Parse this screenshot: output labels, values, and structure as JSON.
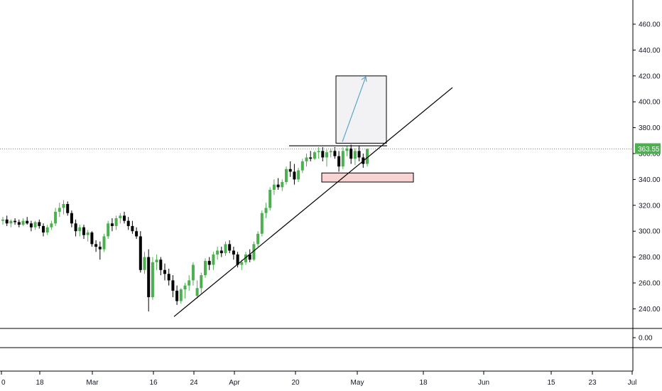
{
  "colors": {
    "up": "#4caf50",
    "down": "#000000",
    "last_price_line": "#4caf50",
    "trendline": "#000000",
    "projection_arrow": "#5aa5c8",
    "target_box_fill": "#f2f2f4",
    "target_box_stroke": "#000000",
    "stop_box_fill": "#f8d3d3",
    "stop_box_stroke": "#000000",
    "axis_text": "#131722",
    "gridline": "#000000"
  },
  "axis": {
    "price_ticks": [
      "460.00",
      "440.00",
      "420.00",
      "400.00",
      "380.00",
      "360.00",
      "340.00",
      "320.00",
      "300.00",
      "280.00",
      "260.00",
      "240.00"
    ],
    "indicator_tick": "0.00",
    "date_ticks": [
      "0",
      "18",
      "Mar",
      "16",
      "24",
      "Apr",
      "20",
      "May",
      "18",
      "Jun",
      "15",
      "23",
      "Jul"
    ],
    "last_price_label": "363.55"
  },
  "chart_data": {
    "type": "candlestick",
    "price_axis_ticks": [
      460,
      440,
      420,
      400,
      380,
      360,
      340,
      320,
      300,
      280,
      260,
      240
    ],
    "last_price": 363.55,
    "candles": [
      {
        "o": 308,
        "h": 311,
        "l": 305,
        "c": 309
      },
      {
        "o": 309,
        "h": 312,
        "l": 304,
        "c": 306
      },
      {
        "o": 306,
        "h": 309,
        "l": 303,
        "c": 308
      },
      {
        "o": 308,
        "h": 310,
        "l": 305,
        "c": 307
      },
      {
        "o": 307,
        "h": 309,
        "l": 303,
        "c": 305
      },
      {
        "o": 305,
        "h": 310,
        "l": 304,
        "c": 308
      },
      {
        "o": 308,
        "h": 311,
        "l": 305,
        "c": 306
      },
      {
        "o": 306,
        "h": 308,
        "l": 300,
        "c": 303
      },
      {
        "o": 303,
        "h": 308,
        "l": 301,
        "c": 307
      },
      {
        "o": 307,
        "h": 309,
        "l": 302,
        "c": 304
      },
      {
        "o": 304,
        "h": 306,
        "l": 296,
        "c": 299
      },
      {
        "o": 299,
        "h": 305,
        "l": 297,
        "c": 303
      },
      {
        "o": 303,
        "h": 308,
        "l": 301,
        "c": 306
      },
      {
        "o": 306,
        "h": 318,
        "l": 304,
        "c": 315
      },
      {
        "o": 315,
        "h": 322,
        "l": 311,
        "c": 318
      },
      {
        "o": 318,
        "h": 324,
        "l": 313,
        "c": 321
      },
      {
        "o": 321,
        "h": 323,
        "l": 312,
        "c": 314
      },
      {
        "o": 314,
        "h": 316,
        "l": 303,
        "c": 306
      },
      {
        "o": 306,
        "h": 309,
        "l": 296,
        "c": 300
      },
      {
        "o": 300,
        "h": 305,
        "l": 296,
        "c": 303
      },
      {
        "o": 303,
        "h": 305,
        "l": 294,
        "c": 297
      },
      {
        "o": 297,
        "h": 301,
        "l": 292,
        "c": 299
      },
      {
        "o": 299,
        "h": 300,
        "l": 288,
        "c": 290
      },
      {
        "o": 290,
        "h": 293,
        "l": 284,
        "c": 288
      },
      {
        "o": 288,
        "h": 292,
        "l": 278,
        "c": 286
      },
      {
        "o": 286,
        "h": 298,
        "l": 284,
        "c": 296
      },
      {
        "o": 296,
        "h": 308,
        "l": 294,
        "c": 306
      },
      {
        "o": 306,
        "h": 310,
        "l": 300,
        "c": 304
      },
      {
        "o": 304,
        "h": 312,
        "l": 301,
        "c": 310
      },
      {
        "o": 310,
        "h": 314,
        "l": 306,
        "c": 312
      },
      {
        "o": 312,
        "h": 315,
        "l": 306,
        "c": 308
      },
      {
        "o": 308,
        "h": 311,
        "l": 301,
        "c": 304
      },
      {
        "o": 304,
        "h": 308,
        "l": 298,
        "c": 300
      },
      {
        "o": 300,
        "h": 303,
        "l": 294,
        "c": 296
      },
      {
        "o": 296,
        "h": 300,
        "l": 268,
        "c": 270
      },
      {
        "o": 270,
        "h": 284,
        "l": 267,
        "c": 280
      },
      {
        "o": 280,
        "h": 286,
        "l": 238,
        "c": 249
      },
      {
        "o": 249,
        "h": 280,
        "l": 247,
        "c": 276
      },
      {
        "o": 276,
        "h": 282,
        "l": 270,
        "c": 278
      },
      {
        "o": 278,
        "h": 280,
        "l": 266,
        "c": 270
      },
      {
        "o": 270,
        "h": 275,
        "l": 262,
        "c": 267
      },
      {
        "o": 267,
        "h": 271,
        "l": 258,
        "c": 262
      },
      {
        "o": 262,
        "h": 266,
        "l": 249,
        "c": 254
      },
      {
        "o": 254,
        "h": 258,
        "l": 243,
        "c": 246
      },
      {
        "o": 246,
        "h": 256,
        "l": 244,
        "c": 255
      },
      {
        "o": 255,
        "h": 260,
        "l": 248,
        "c": 258
      },
      {
        "o": 258,
        "h": 266,
        "l": 254,
        "c": 262
      },
      {
        "o": 262,
        "h": 276,
        "l": 258,
        "c": 274
      },
      {
        "o": 250,
        "h": 262,
        "l": 248,
        "c": 256
      },
      {
        "o": 256,
        "h": 268,
        "l": 252,
        "c": 266
      },
      {
        "o": 266,
        "h": 279,
        "l": 264,
        "c": 277
      },
      {
        "o": 277,
        "h": 280,
        "l": 270,
        "c": 274
      },
      {
        "o": 274,
        "h": 284,
        "l": 270,
        "c": 282
      },
      {
        "o": 282,
        "h": 288,
        "l": 278,
        "c": 285
      },
      {
        "o": 285,
        "h": 288,
        "l": 280,
        "c": 283
      },
      {
        "o": 283,
        "h": 292,
        "l": 281,
        "c": 290
      },
      {
        "o": 290,
        "h": 293,
        "l": 283,
        "c": 285
      },
      {
        "o": 285,
        "h": 288,
        "l": 278,
        "c": 282
      },
      {
        "o": 282,
        "h": 284,
        "l": 272,
        "c": 274
      },
      {
        "o": 274,
        "h": 278,
        "l": 270,
        "c": 276
      },
      {
        "o": 276,
        "h": 284,
        "l": 274,
        "c": 282
      },
      {
        "o": 282,
        "h": 286,
        "l": 276,
        "c": 278
      },
      {
        "o": 278,
        "h": 292,
        "l": 277,
        "c": 290
      },
      {
        "o": 290,
        "h": 300,
        "l": 288,
        "c": 298
      },
      {
        "o": 298,
        "h": 316,
        "l": 296,
        "c": 314
      },
      {
        "o": 314,
        "h": 322,
        "l": 310,
        "c": 318
      },
      {
        "o": 318,
        "h": 334,
        "l": 316,
        "c": 332
      },
      {
        "o": 332,
        "h": 340,
        "l": 328,
        "c": 336
      },
      {
        "o": 336,
        "h": 341,
        "l": 332,
        "c": 334
      },
      {
        "o": 334,
        "h": 340,
        "l": 331,
        "c": 338
      },
      {
        "o": 338,
        "h": 350,
        "l": 336,
        "c": 348
      },
      {
        "o": 348,
        "h": 354,
        "l": 342,
        "c": 346
      },
      {
        "o": 346,
        "h": 352,
        "l": 336,
        "c": 340
      },
      {
        "o": 340,
        "h": 349,
        "l": 338,
        "c": 347
      },
      {
        "o": 347,
        "h": 356,
        "l": 345,
        "c": 354
      },
      {
        "o": 354,
        "h": 360,
        "l": 350,
        "c": 357
      },
      {
        "o": 357,
        "h": 362,
        "l": 354,
        "c": 356
      },
      {
        "o": 356,
        "h": 362,
        "l": 355,
        "c": 361
      },
      {
        "o": 361,
        "h": 365,
        "l": 356,
        "c": 362
      },
      {
        "o": 362,
        "h": 365,
        "l": 354,
        "c": 357
      },
      {
        "o": 357,
        "h": 363,
        "l": 350,
        "c": 361
      },
      {
        "o": 361,
        "h": 364,
        "l": 357,
        "c": 362
      },
      {
        "o": 362,
        "h": 365,
        "l": 356,
        "c": 358
      },
      {
        "o": 358,
        "h": 362,
        "l": 346,
        "c": 350
      },
      {
        "o": 350,
        "h": 365,
        "l": 348,
        "c": 362
      },
      {
        "o": 362,
        "h": 366,
        "l": 358,
        "c": 364
      },
      {
        "o": 364,
        "h": 367,
        "l": 352,
        "c": 356
      },
      {
        "o": 356,
        "h": 364,
        "l": 351,
        "c": 362
      },
      {
        "o": 362,
        "h": 366,
        "l": 354,
        "c": 357
      },
      {
        "o": 357,
        "h": 360,
        "l": 349,
        "c": 352
      },
      {
        "o": 352,
        "h": 364,
        "l": 350,
        "c": 363.55
      }
    ],
    "drawings": {
      "resistance_line": 366,
      "trendline": {
        "from_price": 234,
        "to_price": 411
      },
      "target_box": {
        "top_price": 420,
        "bottom_price": 368
      },
      "stop_box": {
        "top_price": 345,
        "bottom_price": 338
      }
    }
  }
}
